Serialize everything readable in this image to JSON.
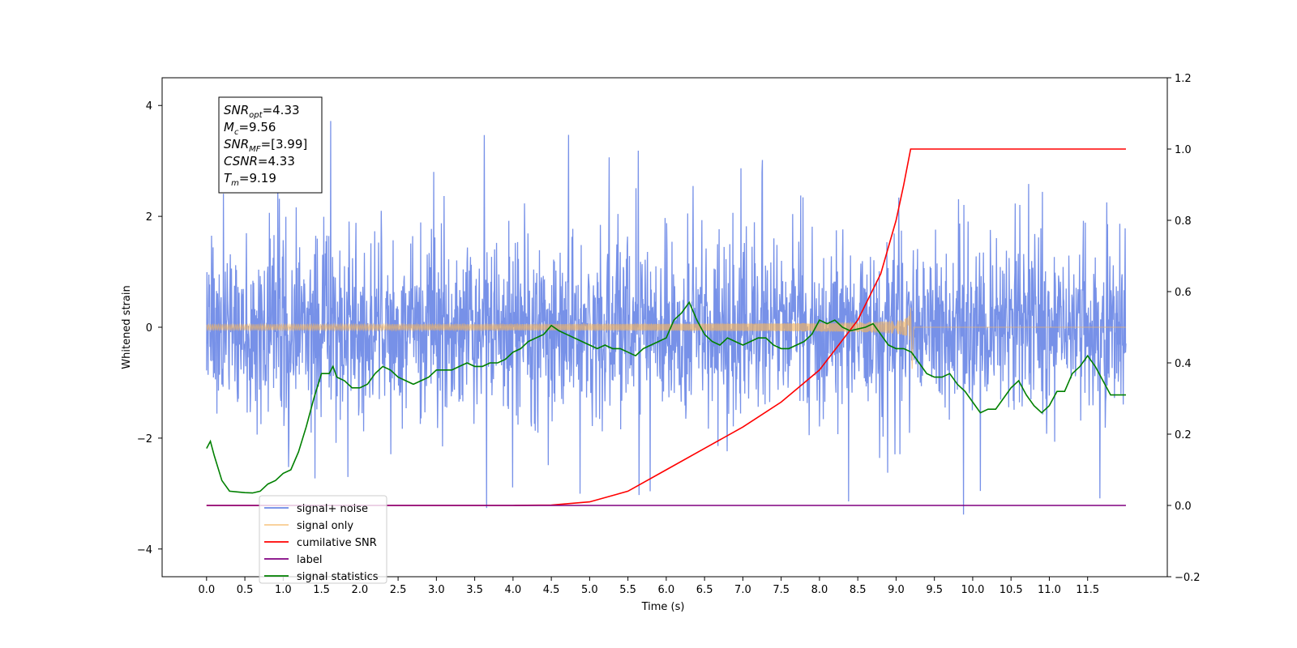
{
  "chart_data": {
    "type": "line",
    "xlabel": "Time (s)",
    "ylabel_left": "Whitened strain",
    "ylabel_right": "",
    "xlim": [
      -0.58,
      12.54
    ],
    "ylim_left": [
      -4.5,
      4.5
    ],
    "ylim_right": [
      -0.2,
      1.2
    ],
    "x_ticks": [
      0.0,
      0.5,
      1.0,
      1.5,
      2.0,
      2.5,
      3.0,
      3.5,
      4.0,
      4.5,
      5.0,
      5.5,
      6.0,
      6.5,
      7.0,
      7.5,
      8.0,
      8.5,
      9.0,
      9.5,
      10.0,
      10.5,
      11.0,
      11.5
    ],
    "y_ticks_left": [
      -4,
      -2,
      0,
      2,
      4
    ],
    "y_ticks_right": [
      -0.2,
      0.0,
      0.2,
      0.4,
      0.6,
      0.8,
      1.0,
      1.2
    ],
    "grid": false,
    "legend_position": "bottom-left",
    "annotation": {
      "lines": [
        {
          "main": "SNR",
          "sub": "opt",
          "rest": "=4.33"
        },
        {
          "main": "M",
          "sub": "c",
          "rest": "=9.56"
        },
        {
          "main": "SNR",
          "sub": "MF",
          "rest": "=[3.99]"
        },
        {
          "main": "CSNR",
          "sub": "",
          "rest": "=4.33"
        },
        {
          "main": "T",
          "sub": "m",
          "rest": "=9.19"
        }
      ]
    },
    "series": [
      {
        "name": "signal+ noise",
        "color": "#6b88e6",
        "axis": "left",
        "kind": "noise",
        "x_range": [
          0.0,
          12.0
        ],
        "typical_range": [
          -1.7,
          1.7
        ],
        "extreme_range": [
          -3.8,
          4.1
        ]
      },
      {
        "name": "signal only",
        "color": "#f5b55f",
        "axis": "left",
        "kind": "chirp",
        "x_range": [
          0.0,
          9.19
        ],
        "peak_amplitude": 0.55,
        "merger_time": 9.19
      },
      {
        "name": "cumilative SNR",
        "color": "#ff0000",
        "axis": "right",
        "x": [
          0.0,
          4.0,
          4.5,
          5.0,
          5.5,
          6.0,
          6.5,
          7.0,
          7.5,
          8.0,
          8.5,
          8.8,
          9.0,
          9.1,
          9.19,
          12.0
        ],
        "y": [
          0.0,
          0.0,
          0.001,
          0.01,
          0.04,
          0.1,
          0.16,
          0.22,
          0.29,
          0.38,
          0.52,
          0.65,
          0.8,
          0.9,
          1.0,
          1.0
        ]
      },
      {
        "name": "label",
        "color": "#800080",
        "axis": "right",
        "x": [
          0.0,
          12.0
        ],
        "y": [
          0.0,
          0.0
        ]
      },
      {
        "name": "signal statistics",
        "color": "#008000",
        "axis": "right",
        "x": [
          0.0,
          0.05,
          0.1,
          0.2,
          0.3,
          0.4,
          0.5,
          0.6,
          0.7,
          0.8,
          0.9,
          1.0,
          1.1,
          1.2,
          1.3,
          1.4,
          1.5,
          1.6,
          1.65,
          1.7,
          1.8,
          1.9,
          2.0,
          2.1,
          2.2,
          2.3,
          2.4,
          2.5,
          2.6,
          2.7,
          2.8,
          2.9,
          3.0,
          3.1,
          3.2,
          3.3,
          3.4,
          3.5,
          3.6,
          3.7,
          3.8,
          3.9,
          4.0,
          4.1,
          4.2,
          4.3,
          4.4,
          4.5,
          4.6,
          4.7,
          4.8,
          4.9,
          5.0,
          5.1,
          5.2,
          5.3,
          5.4,
          5.5,
          5.6,
          5.7,
          5.8,
          5.9,
          6.0,
          6.1,
          6.2,
          6.3,
          6.4,
          6.5,
          6.6,
          6.7,
          6.8,
          6.9,
          7.0,
          7.1,
          7.2,
          7.3,
          7.4,
          7.5,
          7.6,
          7.7,
          7.8,
          7.9,
          8.0,
          8.1,
          8.2,
          8.3,
          8.4,
          8.5,
          8.6,
          8.7,
          8.8,
          8.9,
          9.0,
          9.1,
          9.2,
          9.3,
          9.4,
          9.5,
          9.6,
          9.7,
          9.8,
          9.9,
          10.0,
          10.1,
          10.2,
          10.3,
          10.4,
          10.5,
          10.6,
          10.7,
          10.8,
          10.9,
          11.0,
          11.1,
          11.2,
          11.3,
          11.4,
          11.5,
          11.6,
          11.7,
          11.8,
          11.9,
          12.0
        ],
        "y": [
          0.16,
          0.18,
          0.14,
          0.07,
          0.04,
          0.038,
          0.036,
          0.035,
          0.04,
          0.06,
          0.07,
          0.09,
          0.1,
          0.15,
          0.22,
          0.3,
          0.37,
          0.37,
          0.39,
          0.36,
          0.35,
          0.33,
          0.33,
          0.34,
          0.37,
          0.39,
          0.38,
          0.36,
          0.35,
          0.34,
          0.35,
          0.36,
          0.38,
          0.38,
          0.38,
          0.39,
          0.4,
          0.39,
          0.39,
          0.4,
          0.4,
          0.41,
          0.43,
          0.44,
          0.46,
          0.47,
          0.48,
          0.505,
          0.49,
          0.48,
          0.47,
          0.46,
          0.45,
          0.44,
          0.45,
          0.44,
          0.44,
          0.43,
          0.42,
          0.44,
          0.45,
          0.46,
          0.47,
          0.52,
          0.54,
          0.57,
          0.52,
          0.48,
          0.46,
          0.45,
          0.47,
          0.46,
          0.45,
          0.46,
          0.47,
          0.47,
          0.45,
          0.44,
          0.44,
          0.45,
          0.46,
          0.48,
          0.52,
          0.51,
          0.52,
          0.5,
          0.49,
          0.495,
          0.5,
          0.51,
          0.48,
          0.45,
          0.44,
          0.44,
          0.43,
          0.4,
          0.37,
          0.36,
          0.36,
          0.37,
          0.34,
          0.32,
          0.29,
          0.26,
          0.27,
          0.27,
          0.3,
          0.33,
          0.35,
          0.31,
          0.28,
          0.26,
          0.28,
          0.32,
          0.32,
          0.37,
          0.39,
          0.42,
          0.39,
          0.35,
          0.31,
          0.31,
          0.31
        ]
      }
    ]
  }
}
